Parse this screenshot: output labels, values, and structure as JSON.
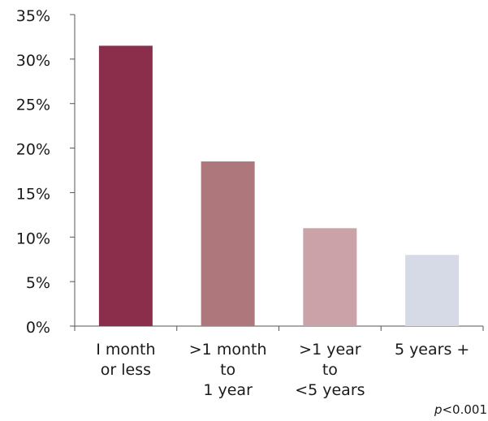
{
  "chart_data": {
    "type": "bar",
    "title": "",
    "xlabel": "",
    "ylabel": "",
    "categories": [
      [
        "I month",
        "or less"
      ],
      [
        ">1 month",
        "to",
        "1 year"
      ],
      [
        ">1 year",
        "to",
        "<5 years"
      ],
      [
        "5 years +"
      ]
    ],
    "values": [
      31.5,
      18.5,
      11,
      8
    ],
    "colors": [
      "#8a2e4b",
      "#ae777b",
      "#cba2a8",
      "#d6d9e6"
    ],
    "ylim": [
      0,
      35
    ],
    "yticks": [
      "0%",
      "5%",
      "10%",
      "15%",
      "20%",
      "25%",
      "30%",
      "35%"
    ],
    "grid": false,
    "legend": "none",
    "annotation": {
      "p_italic": "p",
      "rest": "<0.001"
    }
  }
}
